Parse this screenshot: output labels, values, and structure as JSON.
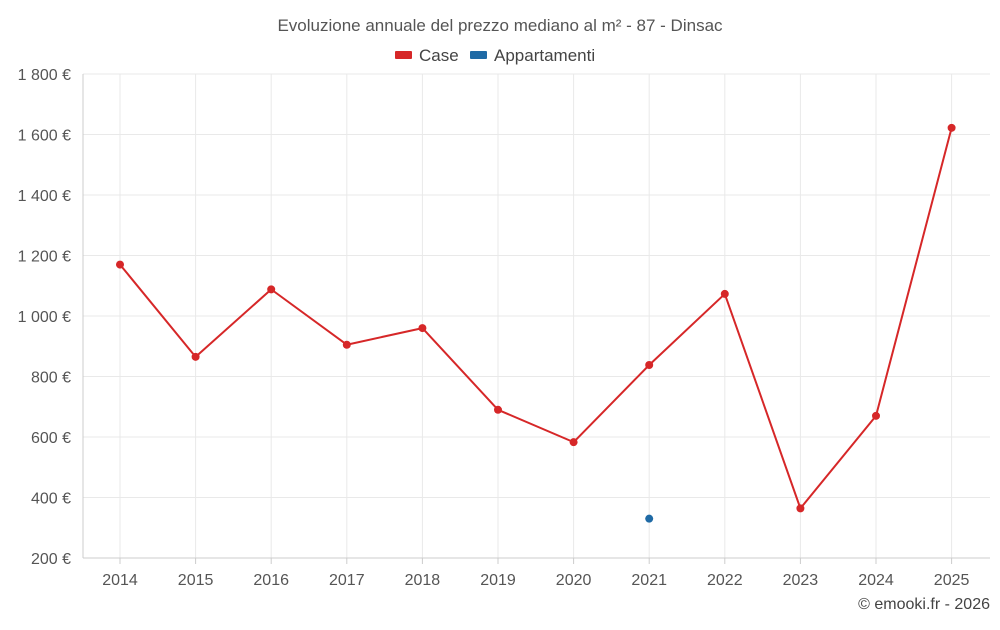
{
  "chart_data": {
    "type": "line",
    "title": "Evoluzione annuale del prezzo mediano al m² - 87 - Dinsac",
    "categories": [
      "2014",
      "2015",
      "2016",
      "2017",
      "2018",
      "2019",
      "2020",
      "2021",
      "2022",
      "2023",
      "2024",
      "2025"
    ],
    "series": [
      {
        "name": "Case",
        "color": "#d62728",
        "values": [
          1170,
          865,
          1088,
          905,
          960,
          690,
          583,
          838,
          1073,
          364,
          670,
          1622
        ]
      },
      {
        "name": "Appartamenti",
        "color": "#1f6aa5",
        "values": [
          null,
          null,
          null,
          null,
          null,
          null,
          null,
          330,
          null,
          null,
          null,
          null
        ]
      }
    ],
    "ylim": [
      200,
      1800
    ],
    "yticks": [
      200,
      400,
      600,
      800,
      1000,
      1200,
      1400,
      1600,
      1800
    ],
    "ytick_labels": [
      "200 €",
      "400 €",
      "600 €",
      "800 €",
      "1 000 €",
      "1 200 €",
      "1 400 €",
      "1 600 €",
      "1 800 €"
    ],
    "xlabel": "",
    "ylabel": "",
    "grid": true,
    "legend_position": "top-center"
  },
  "credit": "© emooki.fr - 2026"
}
